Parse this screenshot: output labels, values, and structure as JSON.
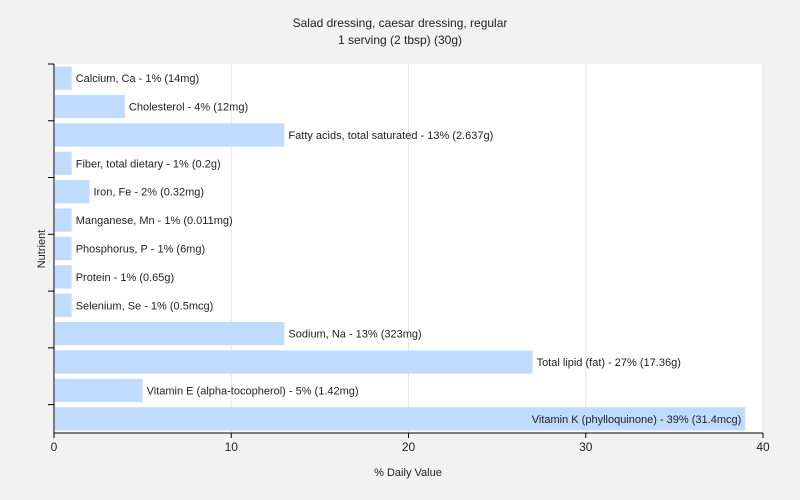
{
  "chart_data": {
    "type": "bar",
    "orientation": "horizontal",
    "title": "Salad dressing, caesar dressing, regular",
    "subtitle": "1 serving (2 tbsp) (30g)",
    "xlabel": "% Daily Value",
    "ylabel": "Nutrient",
    "xlim": [
      0,
      40
    ],
    "xticks": [
      0,
      10,
      20,
      30,
      40
    ],
    "grid": true,
    "colors": {
      "bar": "#bfdcff",
      "grid": "#e6e6e6",
      "background": "#f2f2f2",
      "plot_background": "#ffffff",
      "axis": "#000000"
    },
    "categories": [
      "Calcium, Ca",
      "Cholesterol",
      "Fatty acids, total saturated",
      "Fiber, total dietary",
      "Iron, Fe",
      "Manganese, Mn",
      "Phosphorus, P",
      "Protein",
      "Selenium, Se",
      "Sodium, Na",
      "Total lipid (fat)",
      "Vitamin E (alpha-tocopherol)",
      "Vitamin K (phylloquinone)"
    ],
    "values": [
      1,
      4,
      13,
      1,
      2,
      1,
      1,
      1,
      1,
      13,
      27,
      5,
      39
    ],
    "labels": [
      "Calcium, Ca - 1% (14mg)",
      "Cholesterol - 4% (12mg)",
      "Fatty acids, total saturated - 13% (2.637g)",
      "Fiber, total dietary - 1% (0.2g)",
      "Iron, Fe - 2% (0.32mg)",
      "Manganese, Mn - 1% (0.011mg)",
      "Phosphorus, P - 1% (6mg)",
      "Protein - 1% (0.65g)",
      "Selenium, Se - 1% (0.5mcg)",
      "Sodium, Na - 13% (323mg)",
      "Total lipid (fat) - 27% (17.36g)",
      "Vitamin E (alpha-tocopherol) - 5% (1.42mg)",
      "Vitamin K (phylloquinone) - 39% (31.4mcg)"
    ]
  }
}
